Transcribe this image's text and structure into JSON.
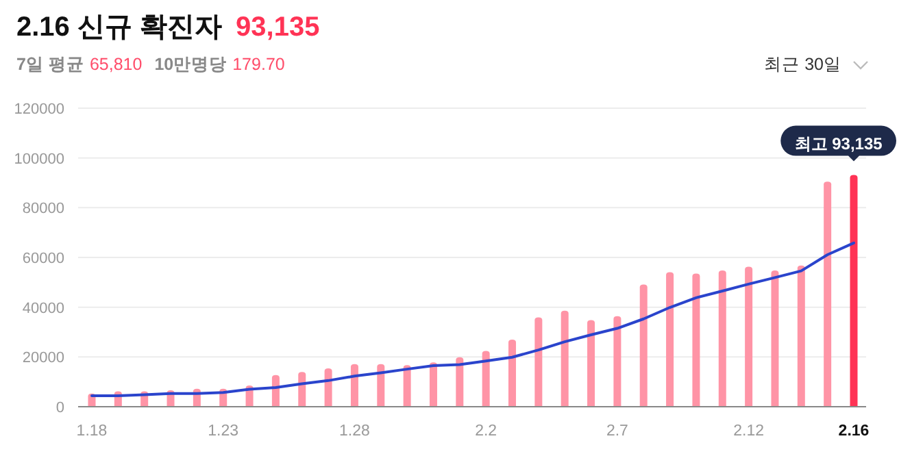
{
  "chart_data": {
    "type": "bar",
    "title": "2.16 신규 확진자",
    "subtitle": "93,135",
    "annotations": [
      "7일 평균",
      "65,810",
      "10만명당",
      "179.70",
      "최근 30일",
      {
        "text": "최고 93,135",
        "x": "2.16",
        "y": 93135
      }
    ],
    "categories": [
      "1.18",
      null,
      null,
      null,
      null,
      "1.23",
      null,
      null,
      null,
      null,
      "1.28",
      null,
      null,
      null,
      null,
      "2.2",
      null,
      null,
      null,
      null,
      "2.7",
      null,
      null,
      null,
      null,
      "2.12",
      null,
      null,
      null,
      "2.16"
    ],
    "series": [
      {
        "colors": [
          "#ff94a6",
          "#ff94a6",
          "#ff94a6",
          "#ff94a6",
          "#ff94a6",
          "#ff94a6",
          "#ff94a6",
          "#ff94a6",
          "#ff94a6",
          "#ff94a6",
          "#ff94a6",
          "#ff94a6",
          "#ff94a6",
          "#ff94a6",
          "#ff94a6",
          "#ff94a6",
          "#ff94a6",
          "#ff94a6",
          "#ff94a6",
          "#ff94a6",
          "#ff94a6",
          "#ff94a6",
          "#ff94a6",
          "#ff94a6",
          "#ff94a6",
          "#ff94a6",
          "#ff94a6",
          "#ff94a6",
          "#ff94a6",
          "#ff3355"
        ],
        "values": [
          5300,
          6200,
          6200,
          6600,
          7200,
          7200,
          8500,
          12700,
          14000,
          15400,
          17100,
          17100,
          16700,
          17800,
          19900,
          22400,
          27000,
          35900,
          38600,
          34800,
          36400,
          49100,
          54100,
          53500,
          54800,
          56300,
          54800,
          56800,
          90500,
          93135
        ]
      },
      {
        "type": "line",
        "color": "#2a44cc",
        "values": [
          4400,
          4400,
          4800,
          5300,
          5300,
          5700,
          7000,
          7700,
          9200,
          10500,
          12300,
          13600,
          15100,
          16500,
          16900,
          18400,
          19900,
          22800,
          26100,
          28900,
          31500,
          35300,
          39900,
          43800,
          46500,
          49300,
          51900,
          54600,
          61100,
          65810
        ]
      }
    ],
    "ylim": [
      0,
      120000
    ],
    "yticks": [
      0,
      20000,
      40000,
      60000,
      80000,
      100000,
      120000
    ],
    "grid": "y"
  }
}
